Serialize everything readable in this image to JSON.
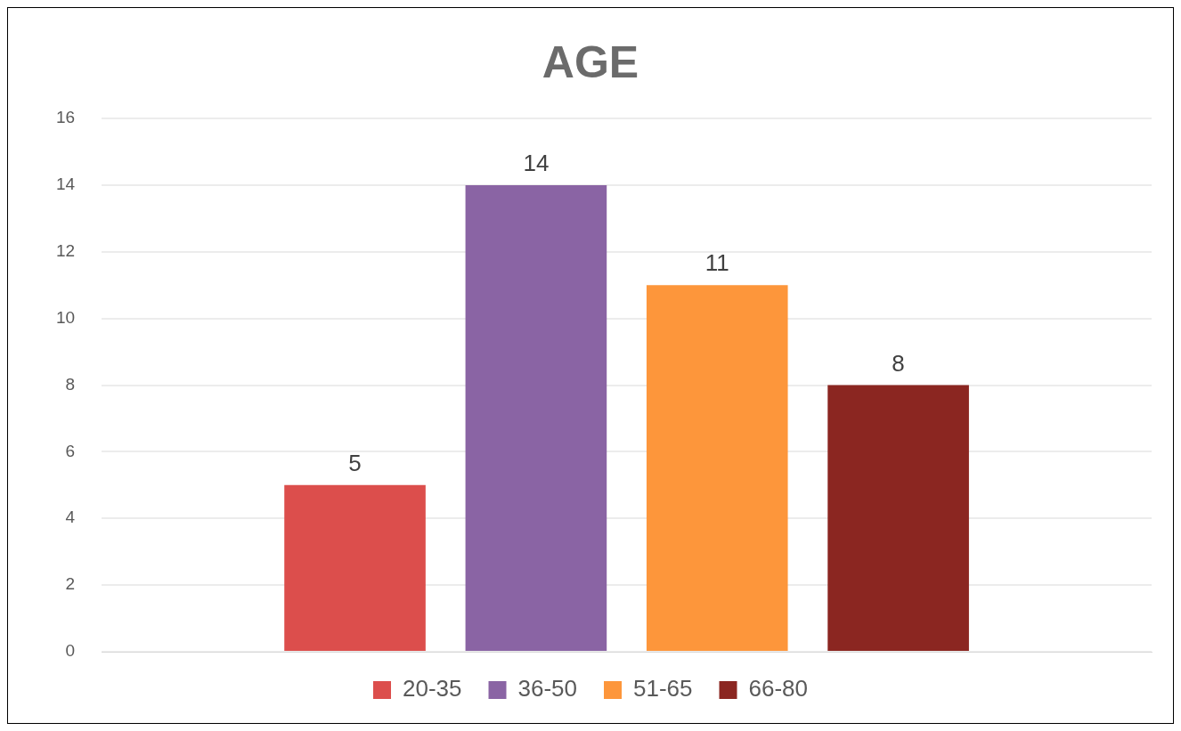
{
  "chart_data": {
    "type": "bar",
    "title": "AGE",
    "categories": [
      null
    ],
    "series": [
      {
        "name": "20-35",
        "color": "#dc4e4c",
        "values": [
          5
        ]
      },
      {
        "name": "36-50",
        "color": "#8a64a4",
        "values": [
          14
        ]
      },
      {
        "name": "51-65",
        "color": "#fd963b",
        "values": [
          11
        ]
      },
      {
        "name": "66-80",
        "color": "#8b2621",
        "values": [
          8
        ]
      }
    ],
    "ylim": [
      0,
      16
    ],
    "yticks": [
      0,
      2,
      4,
      6,
      8,
      10,
      12,
      14,
      16
    ],
    "grid": "y",
    "legend": "bottom",
    "data_labels": true
  }
}
